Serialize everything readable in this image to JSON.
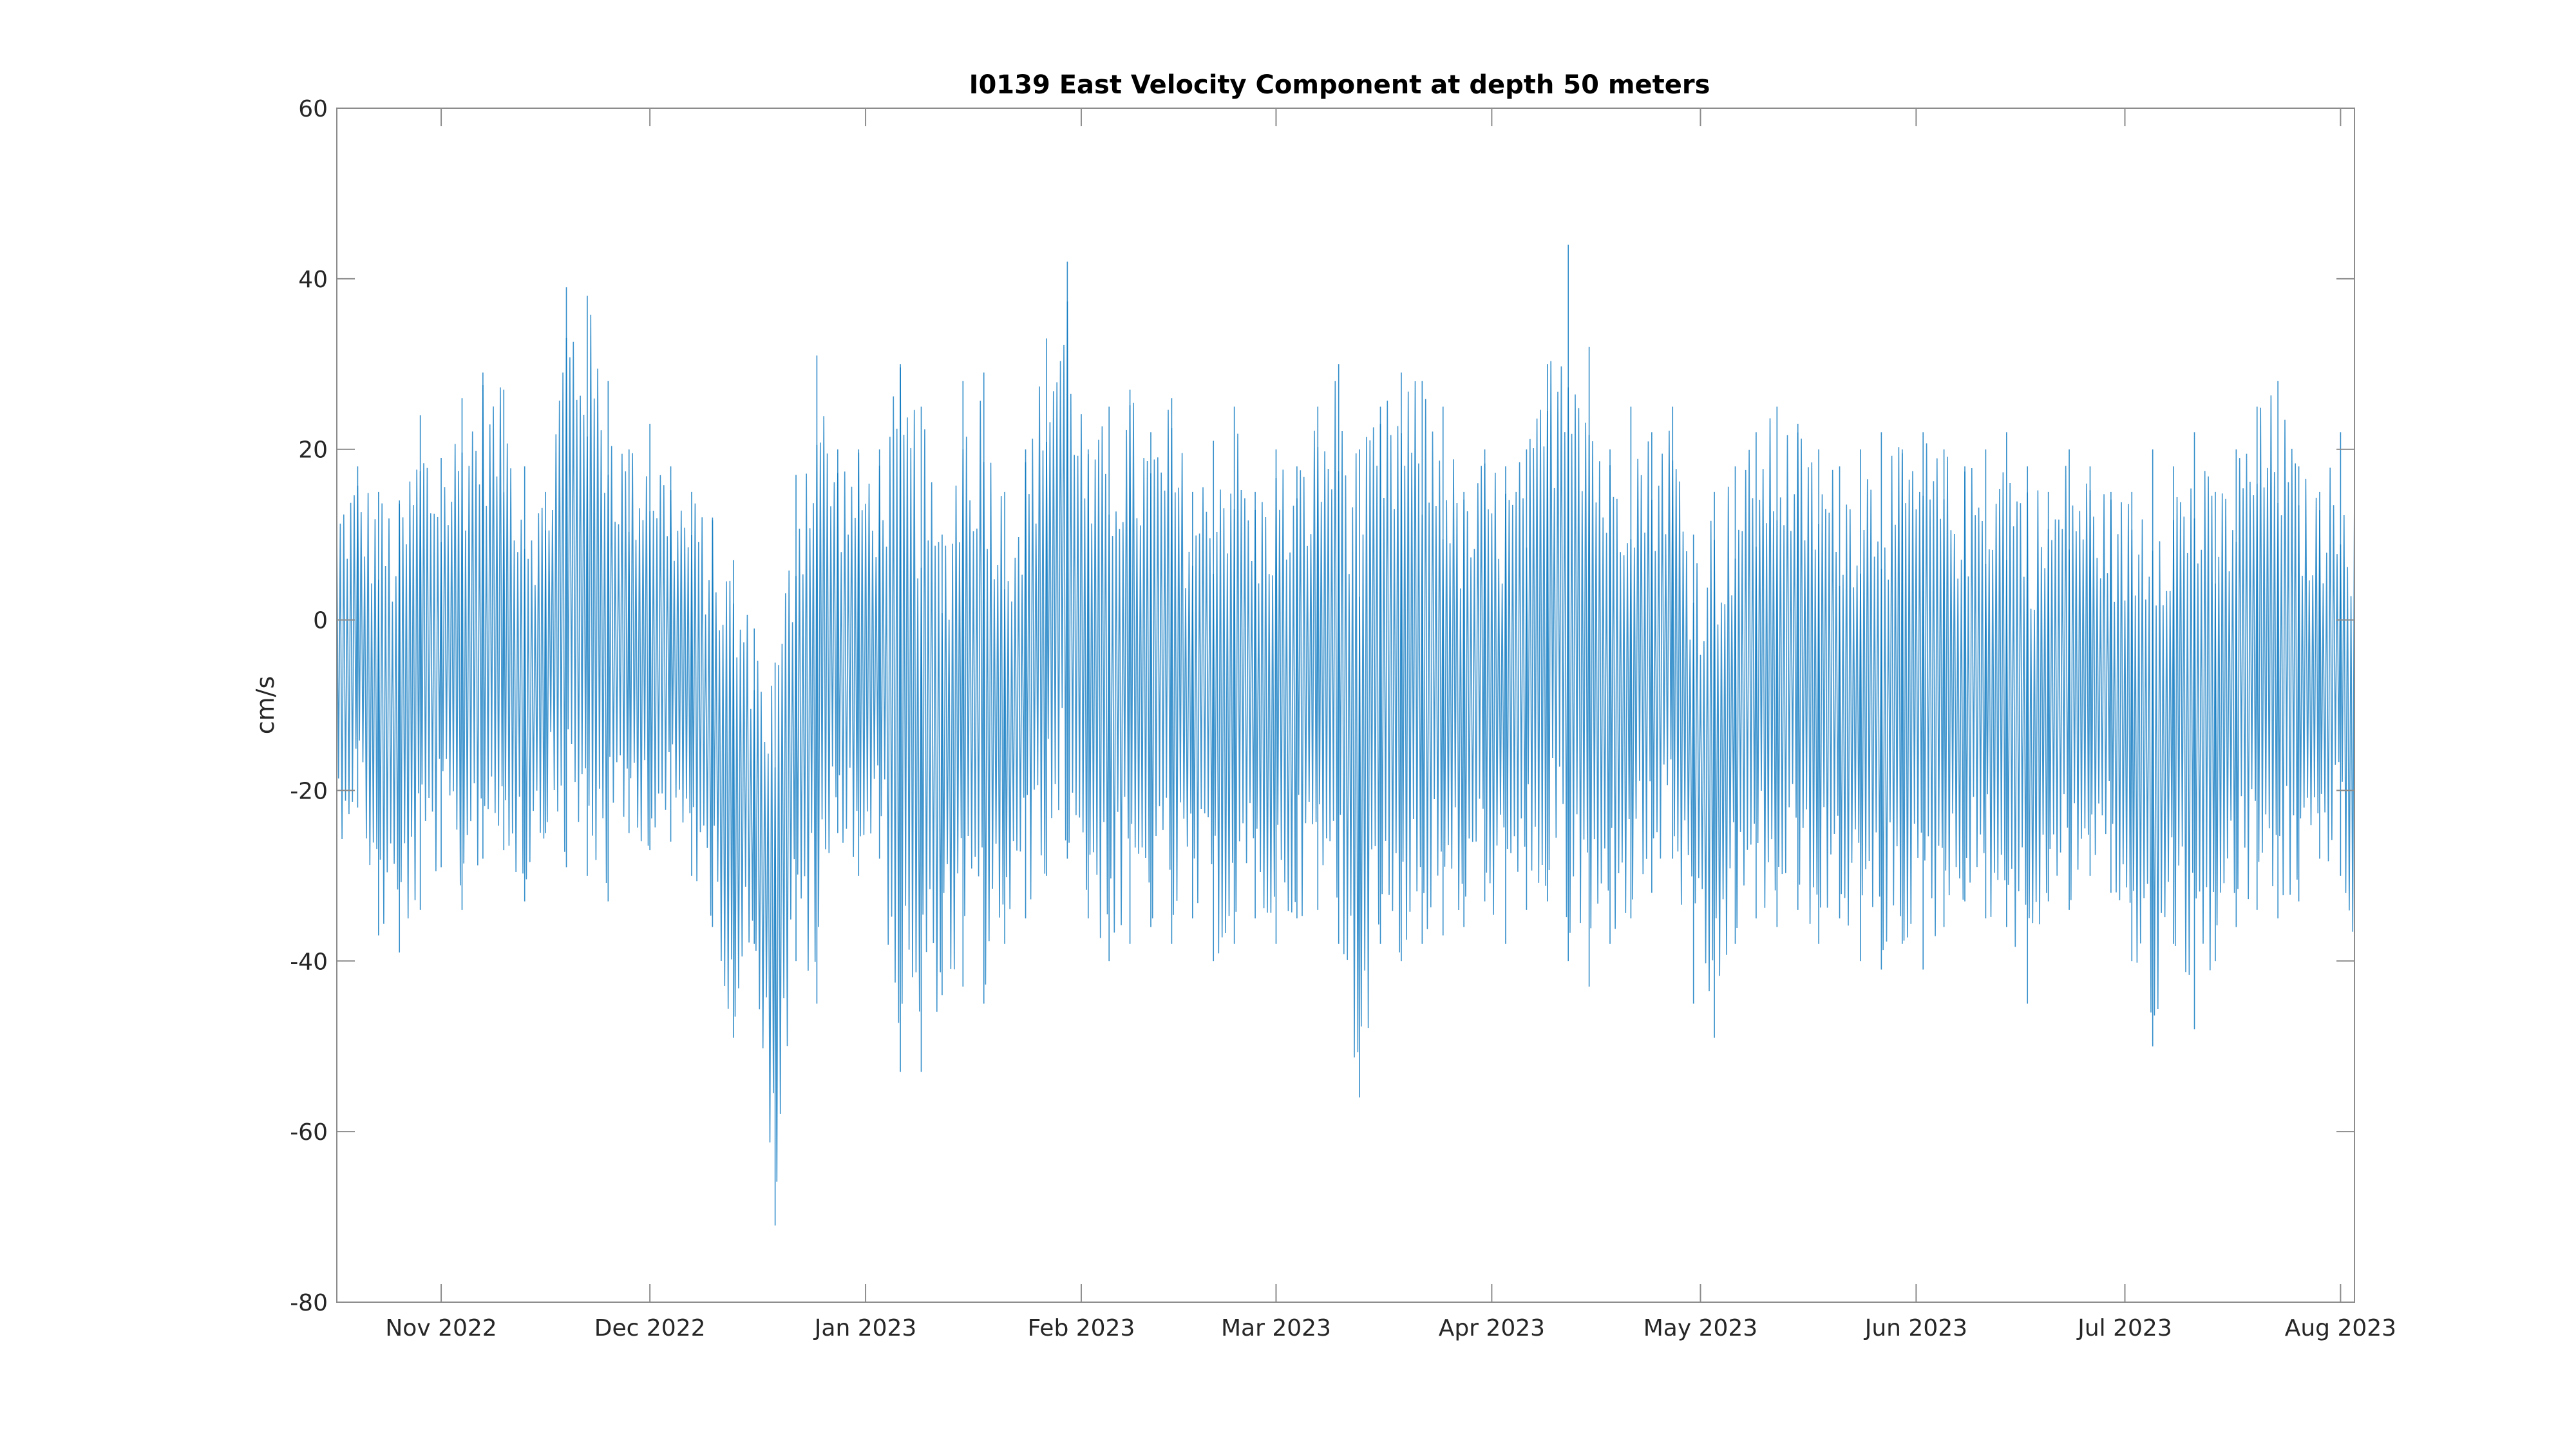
{
  "chart_data": {
    "type": "line",
    "title": "I0139 East Velocity Component at depth 50 meters",
    "xlabel": "",
    "ylabel": "cm/s",
    "xlim": [
      "2022-10-17",
      "2023-08-03"
    ],
    "ylim": [
      -80,
      60
    ],
    "x_ticks": [
      {
        "date": "2022-11-01",
        "label": "Nov 2022"
      },
      {
        "date": "2022-12-01",
        "label": "Dec 2022"
      },
      {
        "date": "2023-01-01",
        "label": "Jan 2023"
      },
      {
        "date": "2023-02-01",
        "label": "Feb 2023"
      },
      {
        "date": "2023-03-01",
        "label": "Mar 2023"
      },
      {
        "date": "2023-04-01",
        "label": "Apr 2023"
      },
      {
        "date": "2023-05-01",
        "label": "May 2023"
      },
      {
        "date": "2023-06-01",
        "label": "Jun 2023"
      },
      {
        "date": "2023-07-01",
        "label": "Jul 2023"
      },
      {
        "date": "2023-08-01",
        "label": "Aug 2023"
      }
    ],
    "y_ticks": [
      {
        "value": 60,
        "label": "60"
      },
      {
        "value": 40,
        "label": "40"
      },
      {
        "value": 20,
        "label": "20"
      },
      {
        "value": 0,
        "label": "0"
      },
      {
        "value": -20,
        "label": "-20"
      },
      {
        "value": -40,
        "label": "-40"
      },
      {
        "value": -60,
        "label": "-60"
      },
      {
        "value": -80,
        "label": "-80"
      }
    ],
    "grid": false,
    "line_color": "#0072BD",
    "series": [
      {
        "name": "",
        "x": [
          "2022-10-17",
          "2022-10-20",
          "2022-10-23",
          "2022-10-26",
          "2022-10-29",
          "2022-11-01",
          "2022-11-04",
          "2022-11-07",
          "2022-11-10",
          "2022-11-13",
          "2022-11-16",
          "2022-11-19",
          "2022-11-22",
          "2022-11-25",
          "2022-11-28",
          "2022-12-01",
          "2022-12-04",
          "2022-12-07",
          "2022-12-10",
          "2022-12-13",
          "2022-12-16",
          "2022-12-19",
          "2022-12-22",
          "2022-12-25",
          "2022-12-28",
          "2022-12-31",
          "2023-01-03",
          "2023-01-06",
          "2023-01-09",
          "2023-01-12",
          "2023-01-15",
          "2023-01-18",
          "2023-01-21",
          "2023-01-24",
          "2023-01-27",
          "2023-01-30",
          "2023-02-02",
          "2023-02-05",
          "2023-02-08",
          "2023-02-11",
          "2023-02-14",
          "2023-02-17",
          "2023-02-20",
          "2023-02-23",
          "2023-02-26",
          "2023-03-01",
          "2023-03-04",
          "2023-03-07",
          "2023-03-10",
          "2023-03-13",
          "2023-03-16",
          "2023-03-19",
          "2023-03-22",
          "2023-03-25",
          "2023-03-28",
          "2023-03-31",
          "2023-04-03",
          "2023-04-06",
          "2023-04-09",
          "2023-04-12",
          "2023-04-15",
          "2023-04-18",
          "2023-04-21",
          "2023-04-24",
          "2023-04-27",
          "2023-04-30",
          "2023-05-03",
          "2023-05-06",
          "2023-05-09",
          "2023-05-12",
          "2023-05-15",
          "2023-05-18",
          "2023-05-21",
          "2023-05-24",
          "2023-05-27",
          "2023-05-30",
          "2023-06-02",
          "2023-06-05",
          "2023-06-08",
          "2023-06-11",
          "2023-06-14",
          "2023-06-17",
          "2023-06-20",
          "2023-06-23",
          "2023-06-26",
          "2023-06-29",
          "2023-07-02",
          "2023-07-05",
          "2023-07-08",
          "2023-07-11",
          "2023-07-14",
          "2023-07-17",
          "2023-07-20",
          "2023-07-23",
          "2023-07-26",
          "2023-07-29",
          "2023-08-01",
          "2023-08-03"
        ],
        "max": [
          15,
          18,
          15,
          14,
          24,
          19,
          26,
          29,
          27,
          18,
          15,
          39,
          38,
          28,
          20,
          23,
          18,
          15,
          12,
          7,
          -1,
          -5,
          17,
          31,
          20,
          20,
          20,
          30,
          25,
          10,
          28,
          29,
          15,
          20,
          33,
          42,
          20,
          25,
          27,
          22,
          26,
          15,
          21,
          25,
          15,
          20,
          18,
          25,
          30,
          20,
          25,
          29,
          28,
          25,
          15,
          20,
          18,
          20,
          30,
          44,
          32,
          20,
          25,
          22,
          25,
          10,
          15,
          18,
          22,
          25,
          23,
          20,
          18,
          20,
          22,
          20,
          22,
          20,
          18,
          20,
          22,
          18,
          15,
          20,
          18,
          15,
          15,
          20,
          18,
          22,
          15,
          20,
          25,
          28,
          18,
          15,
          22,
          18
        ],
        "min": [
          -27,
          -22,
          -37,
          -39,
          -34,
          -29,
          -34,
          -28,
          -27,
          -33,
          -25,
          -29,
          -30,
          -33,
          -25,
          -27,
          -26,
          -30,
          -36,
          -49,
          -38,
          -71,
          -40,
          -45,
          -25,
          -30,
          -28,
          -53,
          -53,
          -44,
          -43,
          -45,
          -38,
          -35,
          -30,
          -28,
          -35,
          -40,
          -38,
          -36,
          -38,
          -35,
          -40,
          -38,
          -35,
          -38,
          -35,
          -34,
          -38,
          -56,
          -38,
          -40,
          -38,
          -37,
          -36,
          -33,
          -38,
          -34,
          -33,
          -40,
          -43,
          -38,
          -35,
          -32,
          -28,
          -45,
          -49,
          -38,
          -35,
          -36,
          -34,
          -38,
          -35,
          -40,
          -41,
          -38,
          -41,
          -36,
          -33,
          -35,
          -36,
          -45,
          -33,
          -34,
          -30,
          -32,
          -40,
          -50,
          -38,
          -48,
          -40,
          -36,
          -34,
          -35,
          -33,
          -28,
          -30,
          -45
        ]
      }
    ]
  }
}
